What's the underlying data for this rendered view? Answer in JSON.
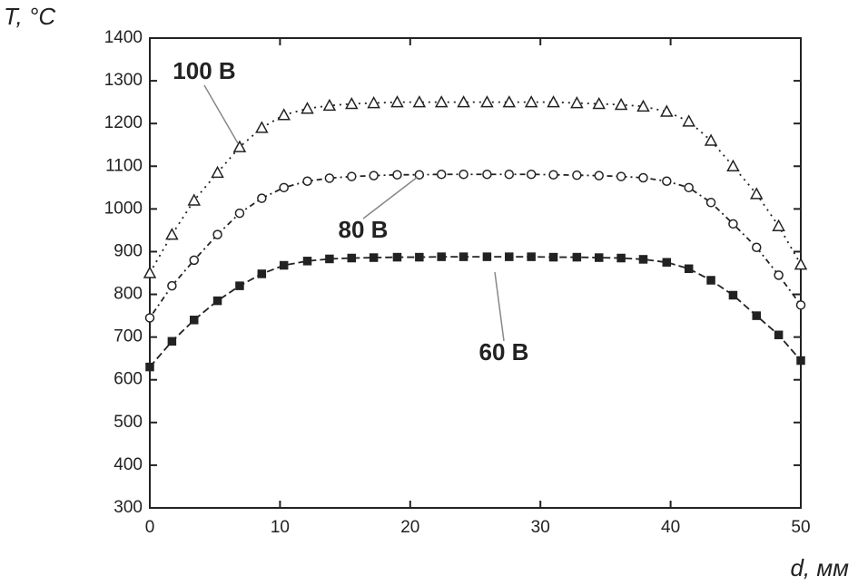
{
  "chart_data": {
    "type": "line",
    "x_label": "d, мм",
    "y_label": "T, °C",
    "x": [
      0,
      1.7,
      3.4,
      5.2,
      6.9,
      8.6,
      10.3,
      12.1,
      13.8,
      15.5,
      17.2,
      19.0,
      20.7,
      22.4,
      24.1,
      25.9,
      27.6,
      29.3,
      31.0,
      32.8,
      34.5,
      36.2,
      37.9,
      39.7,
      41.4,
      43.1,
      44.8,
      46.6,
      48.3,
      50
    ],
    "series": [
      {
        "name": "60 В",
        "color": "#222222",
        "marker": "square",
        "dash": "8,4",
        "values": [
          630,
          690,
          740,
          785,
          820,
          848,
          868,
          878,
          883,
          885,
          886,
          887,
          887,
          888,
          888,
          888,
          888,
          888,
          887,
          887,
          886,
          885,
          882,
          875,
          860,
          833,
          798,
          750,
          705,
          645
        ]
      },
      {
        "name": "80 В",
        "color": "#222222",
        "marker": "circle",
        "dash": "2,4,6,4",
        "values": [
          745,
          820,
          880,
          940,
          990,
          1025,
          1050,
          1065,
          1072,
          1076,
          1078,
          1080,
          1080,
          1081,
          1081,
          1081,
          1081,
          1081,
          1080,
          1079,
          1078,
          1076,
          1073,
          1065,
          1050,
          1015,
          965,
          910,
          845,
          775
        ]
      },
      {
        "name": "100 В",
        "color": "#222222",
        "marker": "triangle",
        "dash": "2,5",
        "values": [
          850,
          940,
          1020,
          1085,
          1145,
          1190,
          1220,
          1235,
          1242,
          1246,
          1248,
          1250,
          1250,
          1250,
          1250,
          1250,
          1250,
          1250,
          1250,
          1248,
          1246,
          1244,
          1240,
          1228,
          1205,
          1160,
          1100,
          1035,
          960,
          870
        ]
      }
    ],
    "xlim": [
      0,
      50
    ],
    "xticks": [
      0,
      10,
      20,
      30,
      40,
      50
    ],
    "ylim": [
      300,
      1400
    ],
    "yticks": [
      300,
      400,
      500,
      600,
      700,
      800,
      900,
      1000,
      1100,
      1200,
      1300,
      1400
    ]
  }
}
